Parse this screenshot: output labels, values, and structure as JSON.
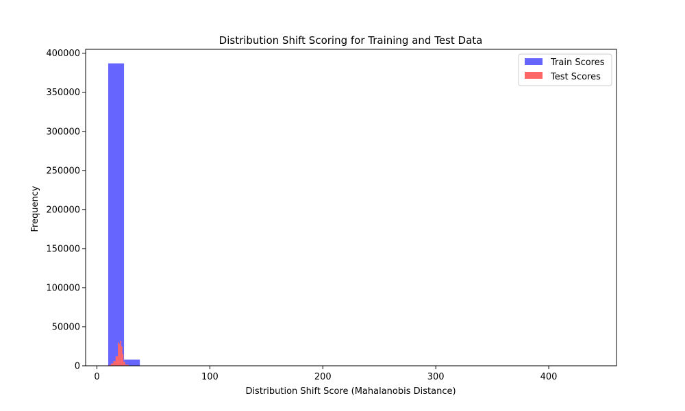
{
  "chart_data": {
    "type": "bar",
    "title": "Distribution Shift Scoring for Training and Test Data",
    "xlabel": "Distribution Shift Score (Mahalanobis Distance)",
    "ylabel": "Frequency",
    "xlim": [
      -10,
      460
    ],
    "ylim": [
      0,
      405000
    ],
    "xticks": [
      0,
      100,
      200,
      300,
      400
    ],
    "yticks": [
      0,
      50000,
      100000,
      150000,
      200000,
      250000,
      300000,
      350000,
      400000
    ],
    "grid": false,
    "legend_position": "top-right",
    "series": [
      {
        "name": "Train Scores",
        "color": "#6666ff",
        "bins": [
          {
            "x0": 10,
            "x1": 24,
            "value": 387000
          },
          {
            "x0": 24,
            "x1": 38,
            "value": 8000
          },
          {
            "x0": 38,
            "x1": 52,
            "value": 300
          }
        ]
      },
      {
        "name": "Test Scores",
        "color": "#ff6666",
        "bins": [
          {
            "x0": 10.5,
            "x1": 12.5,
            "value": 1000
          },
          {
            "x0": 12.5,
            "x1": 14.5,
            "value": 3000
          },
          {
            "x0": 14.5,
            "x1": 16.5,
            "value": 6000
          },
          {
            "x0": 16.5,
            "x1": 18.5,
            "value": 12000
          },
          {
            "x0": 18.5,
            "x1": 19.5,
            "value": 30000
          },
          {
            "x0": 19.5,
            "x1": 20.5,
            "value": 28000
          },
          {
            "x0": 20.5,
            "x1": 21.5,
            "value": 32000
          },
          {
            "x0": 21.5,
            "x1": 22.5,
            "value": 25000
          },
          {
            "x0": 22.5,
            "x1": 23.5,
            "value": 15000
          },
          {
            "x0": 23.5,
            "x1": 25,
            "value": 5000
          },
          {
            "x0": 25,
            "x1": 28,
            "value": 1500
          }
        ]
      }
    ]
  }
}
